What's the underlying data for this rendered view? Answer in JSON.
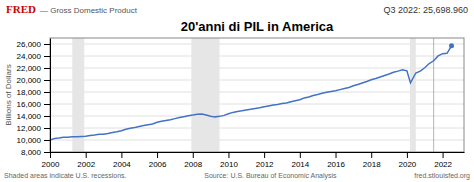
{
  "chart_data": {
    "type": "line",
    "title": "20'anni di PIL in America",
    "y_label": "Billions of Dollars",
    "annotations": [
      "Q3 2022: 25,698.960",
      "FRED",
      "— Gross Domestic Product",
      "Shaded areas indicate U.S. recessions.",
      "Source: U.S. Bureau of Economic Analysis",
      "fred.stlouisfed.org"
    ],
    "x": [
      2000.0,
      2000.25,
      2000.5,
      2000.75,
      2001.0,
      2001.25,
      2001.5,
      2001.75,
      2002.0,
      2002.25,
      2002.5,
      2002.75,
      2003.0,
      2003.25,
      2003.5,
      2003.75,
      2004.0,
      2004.25,
      2004.5,
      2004.75,
      2005.0,
      2005.25,
      2005.5,
      2005.75,
      2006.0,
      2006.25,
      2006.5,
      2006.75,
      2007.0,
      2007.25,
      2007.5,
      2007.75,
      2008.0,
      2008.25,
      2008.5,
      2008.75,
      2009.0,
      2009.25,
      2009.5,
      2009.75,
      2010.0,
      2010.25,
      2010.5,
      2010.75,
      2011.0,
      2011.25,
      2011.5,
      2011.75,
      2012.0,
      2012.25,
      2012.5,
      2012.75,
      2013.0,
      2013.25,
      2013.5,
      2013.75,
      2014.0,
      2014.25,
      2014.5,
      2014.75,
      2015.0,
      2015.25,
      2015.5,
      2015.75,
      2016.0,
      2016.25,
      2016.5,
      2016.75,
      2017.0,
      2017.25,
      2017.5,
      2017.75,
      2018.0,
      2018.25,
      2018.5,
      2018.75,
      2019.0,
      2019.25,
      2019.5,
      2019.75,
      2020.0,
      2020.2,
      2020.5,
      2020.75,
      2021.0,
      2021.25,
      2021.5,
      2021.75,
      2022.0,
      2022.25,
      2022.5
    ],
    "values": [
      10002,
      10247,
      10319,
      10439,
      10472,
      10559,
      10560,
      10602,
      10642,
      10740,
      10840,
      10960,
      10971,
      11071,
      11241,
      11370,
      11558,
      11776,
      11949,
      12071,
      12246,
      12399,
      12546,
      12683,
      12955,
      13107,
      13246,
      13373,
      13562,
      13759,
      13893,
      14043,
      14150,
      14295,
      14348,
      14166,
      13974,
      13855,
      13940,
      14106,
      14387,
      14600,
      14745,
      14870,
      15013,
      15130,
      15261,
      15379,
      15536,
      15681,
      15821,
      15905,
      16078,
      16175,
      16373,
      16553,
      16698,
      17015,
      17165,
      17419,
      17588,
      17793,
      17963,
      18091,
      18222,
      18399,
      18567,
      18745,
      19031,
      19250,
      19500,
      19751,
      20041,
      20263,
      20510,
      20749,
      21001,
      21290,
      21477,
      21695,
      21538,
      19520,
      21170,
      21477,
      22038,
      22741,
      23202,
      24008,
      24386,
      24450,
      25699
    ],
    "color": "#4472c4",
    "xlim": [
      2000,
      2023.2
    ],
    "ylim": [
      8000,
      27000
    ],
    "xticks": [
      2000,
      2002,
      2004,
      2006,
      2008,
      2010,
      2012,
      2014,
      2016,
      2018,
      2020,
      2022
    ],
    "yticks": [
      {
        "value": 8000,
        "label": "8,000"
      },
      {
        "value": 10000,
        "label": "10,000"
      },
      {
        "value": 12000,
        "label": "12,000"
      },
      {
        "value": 14000,
        "label": "14,000"
      },
      {
        "value": 16000,
        "label": "16,000"
      },
      {
        "value": 18000,
        "label": "18,000"
      },
      {
        "value": 20000,
        "label": "20,000"
      },
      {
        "value": 22000,
        "label": "22,000"
      },
      {
        "value": 24000,
        "label": "24,000"
      },
      {
        "value": 26000,
        "label": "26,000"
      }
    ],
    "grid": true,
    "recession_bands": [
      [
        2001.25,
        2001.92
      ],
      [
        2007.92,
        2009.5
      ],
      [
        2020.17,
        2020.5
      ]
    ],
    "vlines": [
      2021.5
    ]
  }
}
